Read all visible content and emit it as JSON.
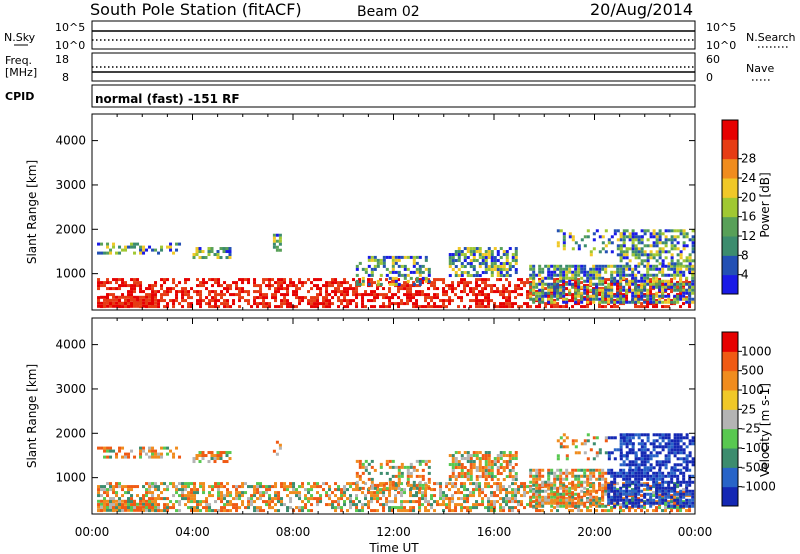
{
  "header": {
    "station": "South Pole Station (fitACF)",
    "beam": "Beam 02",
    "date": "20/Aug/2014"
  },
  "panels": {
    "sky": {
      "left_label": "N.Sky",
      "ytick_top": "10^5",
      "ytick_bottom": "10^0",
      "right_label": "N.Search",
      "right_ytick_top": "10^5",
      "right_ytick_bottom": "10^0"
    },
    "freq": {
      "left_label_1": "Freq.",
      "left_label_2": "[MHz]",
      "ytick_top": "18",
      "ytick_bottom": "8",
      "right_label": "Nave",
      "right_ytick_top": "60",
      "right_ytick_bottom": "0"
    },
    "cpid": {
      "left_label": "CPID",
      "text": "normal (fast) -151 RF"
    }
  },
  "chart_data": [
    {
      "type": "heatmap",
      "name": "power-panel",
      "ylabel": "Slant Range [km]",
      "ylim": [
        180,
        4600
      ],
      "yticks": [
        "1000",
        "2000",
        "3000",
        "4000"
      ],
      "ytick_values": [
        1000,
        2000,
        3000,
        4000
      ],
      "x_hours": [
        0,
        24
      ],
      "colorbar": {
        "label": "Power [dB]",
        "ticks": [
          "4",
          "8",
          "12",
          "16",
          "20",
          "24",
          "28"
        ],
        "colors": [
          "#1a1ae6",
          "#2350b4",
          "#3c8c6e",
          "#58a058",
          "#a0c832",
          "#f0c828",
          "#f08c1e",
          "#e63c14",
          "#e60000"
        ]
      }
    },
    {
      "type": "heatmap",
      "name": "velocity-panel",
      "ylabel": "Slant Range [km]",
      "ylim": [
        180,
        4600
      ],
      "yticks": [
        "1000",
        "2000",
        "3000",
        "4000"
      ],
      "ytick_values": [
        1000,
        2000,
        3000,
        4000
      ],
      "x_hours": [
        0,
        24
      ],
      "xticks": [
        "00:00",
        "04:00",
        "08:00",
        "12:00",
        "16:00",
        "20:00",
        "00:00"
      ],
      "xlabel": "Time UT",
      "colorbar": {
        "label": "Velocity [m s-1]",
        "ticks": [
          "1000",
          "500",
          "100",
          "25",
          "-25",
          "-100",
          "-500",
          "-1000"
        ],
        "colors": [
          "#1428b4",
          "#2864c8",
          "#3c8c6e",
          "#58c850",
          "#b4b4b4",
          "#f0c828",
          "#f08c1e",
          "#f05a14",
          "#e60000"
        ]
      }
    }
  ]
}
